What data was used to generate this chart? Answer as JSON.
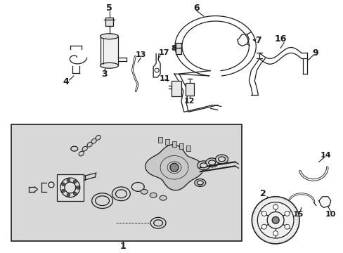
{
  "bg_color": "#ffffff",
  "line_color": "#1a1a1a",
  "gray_bg": "#d8d8d8",
  "fig_width": 4.89,
  "fig_height": 3.6,
  "dpi": 100
}
